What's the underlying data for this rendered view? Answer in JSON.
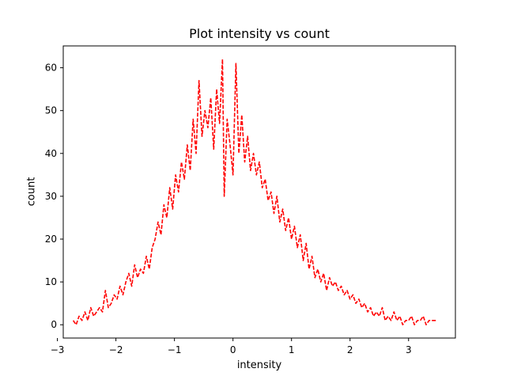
{
  "chart_data": {
    "type": "line",
    "title": "Plot intensity vs count",
    "xlabel": "intensity",
    "ylabel": "count",
    "xlim": [
      -2.9,
      3.8
    ],
    "ylim": [
      -3.1,
      65.1
    ],
    "xticks": [
      -3,
      -2,
      -1,
      0,
      1,
      2,
      3
    ],
    "yticks": [
      0,
      10,
      20,
      30,
      40,
      50,
      60
    ],
    "line_color": "#ff0000",
    "line_style": "dashed",
    "grid": false,
    "series": [
      {
        "x": [
          -2.73,
          -2.68,
          -2.63,
          -2.58,
          -2.53,
          -2.48,
          -2.43,
          -2.38,
          -2.33,
          -2.28,
          -2.23,
          -2.18,
          -2.13,
          -2.08,
          -2.03,
          -1.98,
          -1.93,
          -1.88,
          -1.83,
          -1.78,
          -1.73,
          -1.68,
          -1.63,
          -1.58,
          -1.53,
          -1.48,
          -1.43,
          -1.38,
          -1.33,
          -1.28,
          -1.23,
          -1.18,
          -1.13,
          -1.08,
          -1.03,
          -0.98,
          -0.93,
          -0.88,
          -0.83,
          -0.78,
          -0.73,
          -0.68,
          -0.63,
          -0.58,
          -0.53,
          -0.48,
          -0.43,
          -0.38,
          -0.33,
          -0.28,
          -0.23,
          -0.18,
          -0.15,
          -0.1,
          -0.05,
          0.0,
          0.05,
          0.1,
          0.15,
          0.2,
          0.25,
          0.3,
          0.35,
          0.4,
          0.45,
          0.5,
          0.55,
          0.6,
          0.65,
          0.7,
          0.75,
          0.8,
          0.85,
          0.9,
          0.95,
          1.0,
          1.05,
          1.1,
          1.15,
          1.2,
          1.25,
          1.3,
          1.35,
          1.4,
          1.45,
          1.5,
          1.55,
          1.6,
          1.65,
          1.7,
          1.75,
          1.8,
          1.85,
          1.9,
          1.95,
          2.0,
          2.05,
          2.1,
          2.15,
          2.2,
          2.25,
          2.3,
          2.35,
          2.4,
          2.45,
          2.5,
          2.55,
          2.6,
          2.65,
          2.7,
          2.75,
          2.8,
          2.85,
          2.9,
          2.95,
          3.0,
          3.05,
          3.1,
          3.15,
          3.2,
          3.25,
          3.3,
          3.35,
          3.4,
          3.47
        ],
        "y": [
          1,
          0,
          2,
          1,
          3,
          1,
          4,
          2,
          3,
          4,
          3,
          8,
          4,
          5,
          7,
          6,
          9,
          7,
          10,
          12,
          9,
          14,
          11,
          13,
          12,
          16,
          13,
          18,
          20,
          24,
          21,
          28,
          25,
          32,
          27,
          35,
          31,
          38,
          34,
          42,
          36,
          48,
          40,
          57,
          44,
          50,
          46,
          53,
          41,
          55,
          47,
          62,
          30,
          48,
          42,
          35,
          61,
          40,
          49,
          38,
          44,
          36,
          40,
          35,
          38,
          32,
          34,
          29,
          31,
          26,
          30,
          24,
          27,
          22,
          25,
          20,
          23,
          18,
          21,
          15,
          19,
          13,
          16,
          11,
          13,
          10,
          12,
          8,
          11,
          9,
          10,
          8,
          9,
          7,
          8,
          6,
          7,
          5,
          6,
          4,
          5,
          3,
          4,
          2,
          3,
          2,
          4,
          1,
          2,
          1,
          3,
          1,
          2,
          0,
          1,
          1,
          2,
          0,
          1,
          1,
          2,
          0,
          1,
          1,
          1
        ]
      }
    ]
  }
}
